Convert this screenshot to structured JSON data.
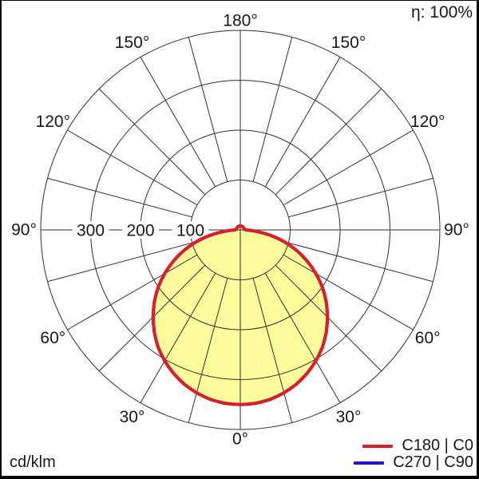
{
  "eta_label": "η: 100%",
  "unit_label": "cd/klm",
  "legend": {
    "items": [
      {
        "label": "C180 | C0",
        "color": "#dc1f26"
      },
      {
        "label": "C270 | C90",
        "color": "#1b1bbd"
      }
    ]
  },
  "chart_data": {
    "type": "polar",
    "subtype": "photometric-intensity-distribution",
    "units": "cd/klm",
    "efficiency_text": "η: 100%",
    "grid": {
      "color": "#2e2e2e",
      "angle_step_deg": 15,
      "radial_ticks": [
        100,
        200,
        300
      ],
      "radial_max": 400,
      "tick_label_side": "left"
    },
    "angle_labels": [
      {
        "deg": 0,
        "label": "0°"
      },
      {
        "deg": 30,
        "label": "30°"
      },
      {
        "deg": 60,
        "label": "60°"
      },
      {
        "deg": 90,
        "label": "90°"
      },
      {
        "deg": 120,
        "label": "120°"
      },
      {
        "deg": 150,
        "label": "150°"
      },
      {
        "deg": 180,
        "label": "180°"
      }
    ],
    "series": [
      {
        "name": "C180 | C0",
        "color": "#dc1f26",
        "fill": "#fcfc9c",
        "symmetric_about_0_180": true,
        "points_gamma_deg_cd_per_klm": [
          [
            0,
            350
          ],
          [
            5,
            349
          ],
          [
            10,
            345
          ],
          [
            15,
            338
          ],
          [
            20,
            329
          ],
          [
            25,
            317
          ],
          [
            30,
            303
          ],
          [
            35,
            287
          ],
          [
            40,
            268
          ],
          [
            45,
            247
          ],
          [
            50,
            225
          ],
          [
            55,
            201
          ],
          [
            60,
            175
          ],
          [
            65,
            148
          ],
          [
            70,
            120
          ],
          [
            75,
            91
          ],
          [
            80,
            61
          ],
          [
            85,
            31
          ],
          [
            90,
            12
          ],
          [
            95,
            9
          ],
          [
            105,
            8
          ],
          [
            120,
            8
          ],
          [
            135,
            8
          ],
          [
            150,
            8
          ],
          [
            165,
            8
          ],
          [
            180,
            8
          ]
        ]
      },
      {
        "name": "C270 | C90",
        "color": "#1b1bbd",
        "fill": "none",
        "symmetric_about_0_180": true,
        "points_gamma_deg_cd_per_klm": [
          [
            0,
            350
          ],
          [
            5,
            349
          ],
          [
            10,
            345
          ],
          [
            15,
            338
          ],
          [
            20,
            329
          ],
          [
            25,
            317
          ],
          [
            30,
            303
          ],
          [
            35,
            287
          ],
          [
            40,
            268
          ],
          [
            45,
            247
          ],
          [
            50,
            225
          ],
          [
            55,
            201
          ],
          [
            60,
            175
          ],
          [
            65,
            148
          ],
          [
            70,
            120
          ],
          [
            75,
            91
          ],
          [
            80,
            61
          ],
          [
            85,
            31
          ],
          [
            90,
            12
          ],
          [
            95,
            9
          ],
          [
            105,
            8
          ],
          [
            120,
            8
          ],
          [
            135,
            8
          ],
          [
            150,
            8
          ],
          [
            165,
            8
          ],
          [
            180,
            8
          ]
        ],
        "note": "coincides with C180 | C0 curve, hidden beneath it"
      }
    ]
  }
}
